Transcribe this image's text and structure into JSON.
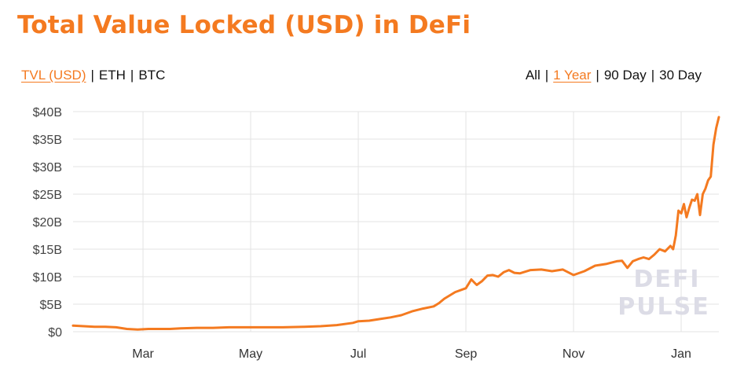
{
  "page": {
    "title": "Total Value Locked (USD) in DeFi",
    "metric_tabs": [
      {
        "label": "TVL (USD)",
        "active": true
      },
      {
        "label": "ETH",
        "active": false
      },
      {
        "label": "BTC",
        "active": false
      }
    ],
    "range_tabs": [
      {
        "label": "All",
        "active": false
      },
      {
        "label": "1 Year",
        "active": true
      },
      {
        "label": "90 Day",
        "active": false
      },
      {
        "label": "30 Day",
        "active": false
      }
    ],
    "separator": "|",
    "watermark": [
      "DEFI",
      "PULSE"
    ],
    "accent_color": "#f47a20"
  },
  "chart_data": {
    "type": "line",
    "title": "Total Value Locked (USD) in DeFi",
    "xlabel": "",
    "ylabel": "",
    "ylim": [
      0,
      40
    ],
    "yticks": [
      0,
      5,
      10,
      15,
      20,
      25,
      30,
      35,
      40
    ],
    "yticklabels": [
      "$0",
      "$5B",
      "$10B",
      "$15B",
      "$20B",
      "$25B",
      "$30B",
      "$35B",
      "$40B"
    ],
    "xlim": [
      -0.3,
      11.7
    ],
    "xticks": [
      1,
      3,
      5,
      7,
      9,
      11
    ],
    "xticklabels": [
      "Mar",
      "May",
      "Jul",
      "Sep",
      "Nov",
      "Jan"
    ],
    "grid": true,
    "legend": "none",
    "series": [
      {
        "color": "#f47a20",
        "x": [
          -0.3,
          -0.1,
          0.1,
          0.3,
          0.5,
          0.7,
          0.9,
          1.1,
          1.3,
          1.5,
          1.7,
          2.0,
          2.3,
          2.6,
          3.0,
          3.3,
          3.6,
          4.0,
          4.3,
          4.6,
          4.9,
          5.0,
          5.2,
          5.4,
          5.6,
          5.8,
          6.0,
          6.2,
          6.4,
          6.5,
          6.6,
          6.8,
          7.0,
          7.05,
          7.1,
          7.15,
          7.2,
          7.3,
          7.4,
          7.5,
          7.6,
          7.7,
          7.8,
          7.9,
          8.0,
          8.2,
          8.4,
          8.6,
          8.8,
          9.0,
          9.2,
          9.4,
          9.6,
          9.8,
          9.9,
          10.0,
          10.1,
          10.2,
          10.3,
          10.4,
          10.5,
          10.6,
          10.7,
          10.8,
          10.85,
          10.9,
          10.95,
          11.0,
          11.05,
          11.1,
          11.15,
          11.2,
          11.25,
          11.3,
          11.35,
          11.4,
          11.45,
          11.5,
          11.55,
          11.6,
          11.65,
          11.7
        ],
        "values": [
          1.1,
          1.0,
          0.9,
          0.9,
          0.8,
          0.5,
          0.4,
          0.5,
          0.5,
          0.5,
          0.6,
          0.7,
          0.7,
          0.8,
          0.8,
          0.8,
          0.8,
          0.9,
          1.0,
          1.2,
          1.6,
          1.9,
          2.0,
          2.3,
          2.6,
          3.0,
          3.7,
          4.2,
          4.6,
          5.2,
          6.0,
          7.2,
          7.9,
          8.7,
          9.5,
          9.0,
          8.5,
          9.2,
          10.2,
          10.3,
          10.0,
          10.8,
          11.2,
          10.7,
          10.6,
          11.2,
          11.3,
          11.0,
          11.3,
          10.3,
          11.0,
          12.0,
          12.3,
          12.8,
          12.9,
          11.6,
          12.8,
          13.2,
          13.5,
          13.2,
          14.0,
          15.0,
          14.6,
          15.6,
          15.0,
          17.5,
          22.0,
          21.5,
          23.2,
          20.8,
          22.5,
          24.0,
          23.8,
          25.0,
          21.2,
          25.0,
          26.0,
          27.5,
          28.2,
          34.0,
          37.0,
          39.0
        ]
      }
    ]
  }
}
